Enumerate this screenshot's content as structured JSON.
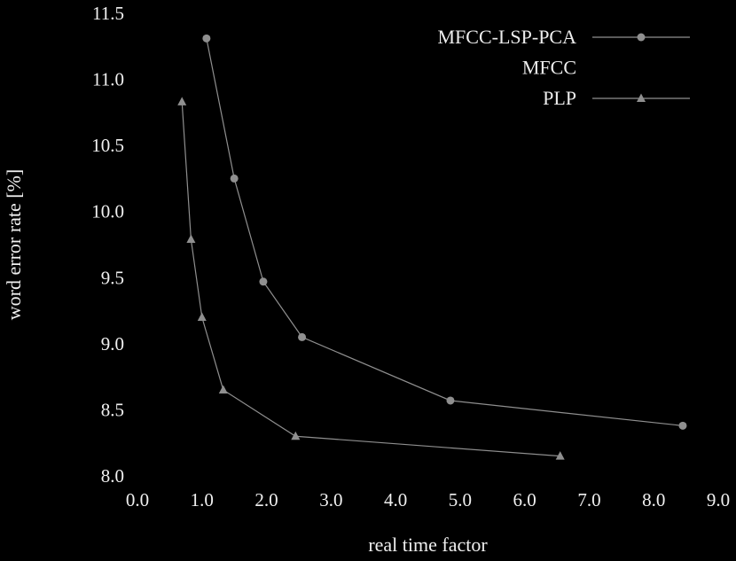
{
  "chart_data": {
    "type": "line",
    "title": "",
    "xlabel": "real time factor",
    "ylabel": "word error rate [%]",
    "xlim": [
      0.0,
      9.0
    ],
    "ylim": [
      8.0,
      11.5
    ],
    "grid": false,
    "background": "#000000",
    "text_color": "#f0f0f0",
    "line_color": "#8f8f8f",
    "legend_position": "top-right",
    "xtick_labels": [
      "0.0",
      "1.0",
      "2.0",
      "3.0",
      "4.0",
      "5.0",
      "6.0",
      "7.0",
      "8.0",
      "9.0"
    ],
    "ytick_labels": [
      "8.0",
      "8.5",
      "9.0",
      "9.5",
      "10.0",
      "10.5",
      "11.0",
      "11.5"
    ],
    "series": [
      {
        "name": "MFCC-LSP-PCA",
        "marker": "circle",
        "color": "#8f8f8f",
        "legend_sample_visible": true,
        "points": [
          [
            1.07,
            11.31
          ],
          [
            1.5,
            10.25
          ],
          [
            1.95,
            9.47
          ],
          [
            2.55,
            9.05
          ],
          [
            4.85,
            8.57
          ],
          [
            8.45,
            8.38
          ]
        ]
      },
      {
        "name": "MFCC",
        "marker": "none",
        "color": "#000000",
        "legend_sample_visible": false,
        "points": []
      },
      {
        "name": "PLP",
        "marker": "triangle",
        "color": "#8f8f8f",
        "legend_sample_visible": true,
        "points": [
          [
            0.69,
            10.83
          ],
          [
            0.83,
            9.79
          ],
          [
            1.0,
            9.2
          ],
          [
            1.33,
            8.65
          ],
          [
            2.45,
            8.3
          ],
          [
            6.55,
            8.15
          ]
        ]
      }
    ]
  }
}
